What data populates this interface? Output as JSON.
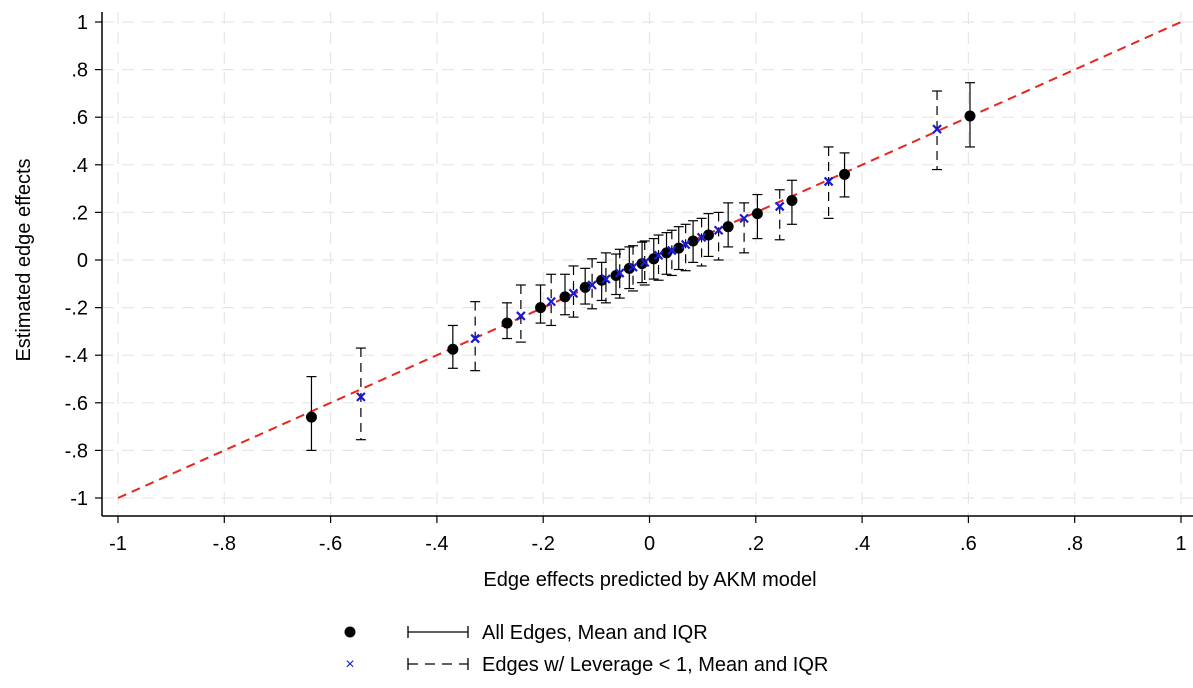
{
  "chart_data": {
    "type": "scatter",
    "xlabel": "Edge effects predicted by AKM model",
    "ylabel": "Estimated edge effects",
    "xlim": [
      -1,
      1
    ],
    "ylim": [
      -1,
      1
    ],
    "x_ticks": [
      "-1",
      "-.8",
      "-.6",
      "-.4",
      "-.2",
      "0",
      ".2",
      ".4",
      ".6",
      ".8",
      "1"
    ],
    "y_ticks": [
      "-1",
      "-.8",
      "-.6",
      "-.4",
      "-.2",
      "0",
      ".2",
      ".4",
      ".6",
      ".8",
      "1"
    ],
    "x_tick_values": [
      -1,
      -0.8,
      -0.6,
      -0.4,
      -0.2,
      0,
      0.2,
      0.4,
      0.6,
      0.8,
      1
    ],
    "y_tick_values": [
      -1,
      -0.8,
      -0.6,
      -0.4,
      -0.2,
      0,
      0.2,
      0.4,
      0.6,
      0.8,
      1
    ],
    "grid": true,
    "legend_position": "bottom",
    "reference_line": {
      "from": [
        -1,
        -1
      ],
      "to": [
        1,
        1
      ],
      "style": "dashed",
      "color": "#e8261c"
    },
    "series": [
      {
        "name": "All Edges, Mean and IQR",
        "marker": "circle",
        "color": "#000000",
        "errorbar_style": "solid",
        "x": [
          -0.636,
          -0.37,
          -0.268,
          -0.205,
          -0.159,
          -0.121,
          -0.09,
          -0.063,
          -0.038,
          -0.014,
          0.008,
          0.032,
          0.055,
          0.082,
          0.111,
          0.148,
          0.203,
          0.268,
          0.367,
          0.603
        ],
        "y": [
          -0.66,
          -0.375,
          -0.265,
          -0.2,
          -0.155,
          -0.115,
          -0.085,
          -0.065,
          -0.035,
          -0.015,
          0.005,
          0.03,
          0.05,
          0.08,
          0.105,
          0.14,
          0.195,
          0.25,
          0.36,
          0.605
        ],
        "low": [
          -0.8,
          -0.455,
          -0.33,
          -0.265,
          -0.23,
          -0.185,
          -0.17,
          -0.145,
          -0.12,
          -0.095,
          -0.08,
          -0.06,
          -0.04,
          -0.01,
          0.015,
          0.055,
          0.09,
          0.15,
          0.265,
          0.475
        ],
        "high": [
          -0.49,
          -0.275,
          -0.18,
          -0.105,
          -0.06,
          -0.035,
          -0.01,
          0.025,
          0.055,
          0.075,
          0.09,
          0.115,
          0.14,
          0.165,
          0.195,
          0.24,
          0.275,
          0.335,
          0.45,
          0.745
        ]
      },
      {
        "name": "Edges w/ Leverage < 1, Mean and IQR",
        "marker": "x",
        "color": "#1a1ad4",
        "errorbar_style": "dashed",
        "x": [
          -0.543,
          -0.328,
          -0.242,
          -0.185,
          -0.143,
          -0.108,
          -0.082,
          -0.056,
          -0.031,
          -0.009,
          0.017,
          0.042,
          0.068,
          0.098,
          0.13,
          0.178,
          0.245,
          0.337,
          0.541
        ],
        "y": [
          -0.575,
          -0.33,
          -0.235,
          -0.175,
          -0.14,
          -0.105,
          -0.08,
          -0.055,
          -0.03,
          -0.01,
          0.02,
          0.04,
          0.065,
          0.095,
          0.125,
          0.175,
          0.225,
          0.33,
          0.55
        ],
        "low": [
          -0.755,
          -0.465,
          -0.345,
          -0.275,
          -0.24,
          -0.205,
          -0.18,
          -0.16,
          -0.13,
          -0.105,
          -0.085,
          -0.065,
          -0.045,
          -0.025,
          0.0,
          0.03,
          0.085,
          0.175,
          0.38
        ],
        "high": [
          -0.37,
          -0.175,
          -0.105,
          -0.06,
          -0.025,
          0.005,
          0.03,
          0.045,
          0.06,
          0.08,
          0.105,
          0.125,
          0.15,
          0.175,
          0.2,
          0.24,
          0.295,
          0.475,
          0.71
        ]
      }
    ]
  }
}
